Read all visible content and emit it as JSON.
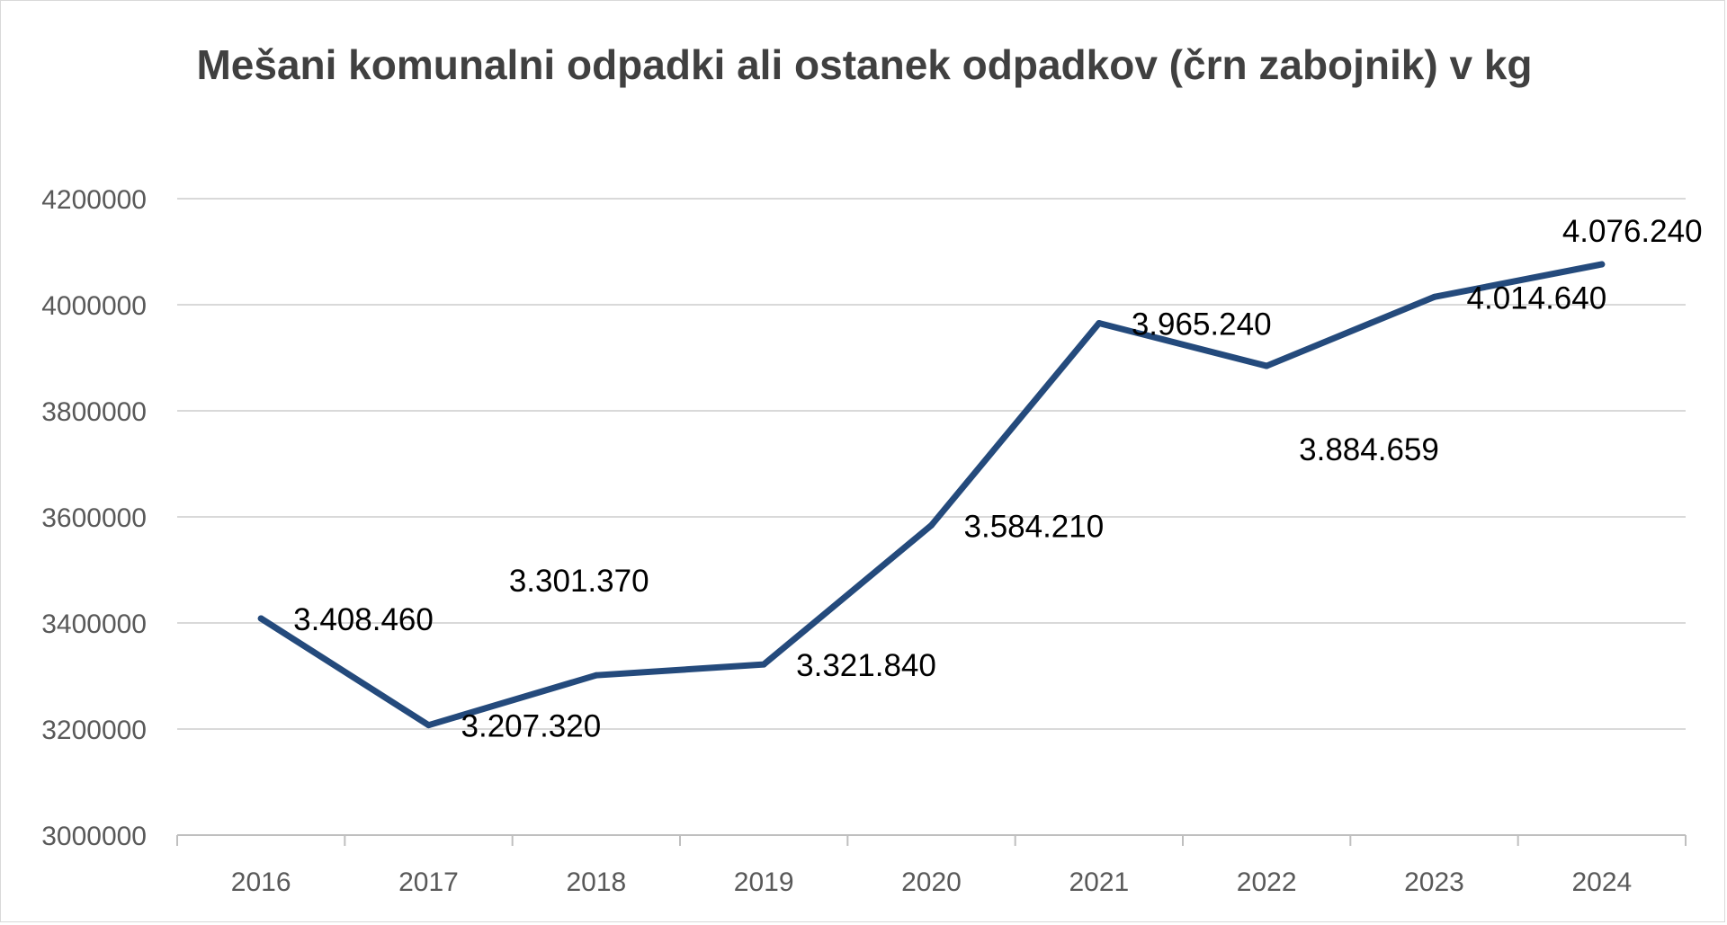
{
  "chart_data": {
    "type": "line",
    "title": "Mešani komunalni odpadki ali ostanek odpadkov (črn zabojnik) v kg",
    "xlabel": "",
    "ylabel": "",
    "categories": [
      "2016",
      "2017",
      "2018",
      "2019",
      "2020",
      "2021",
      "2022",
      "2023",
      "2024"
    ],
    "series": [
      {
        "values": [
          3408460,
          3207320,
          3301370,
          3321840,
          3584210,
          3965240,
          3884659,
          4014640,
          4076240
        ],
        "labels": [
          "3.408.460",
          "3.207.320",
          "3.301.370",
          "3.321.840",
          "3.584.210",
          "3.965.240",
          "3.884.659",
          "4.014.640",
          "4.076.240"
        ],
        "color": "#244a7c"
      }
    ],
    "ylim": [
      3000000,
      4200000
    ],
    "yticks": [
      "3000000",
      "3200000",
      "3400000",
      "3600000",
      "3800000",
      "4000000",
      "4200000"
    ],
    "grid": true,
    "legend": "none"
  }
}
